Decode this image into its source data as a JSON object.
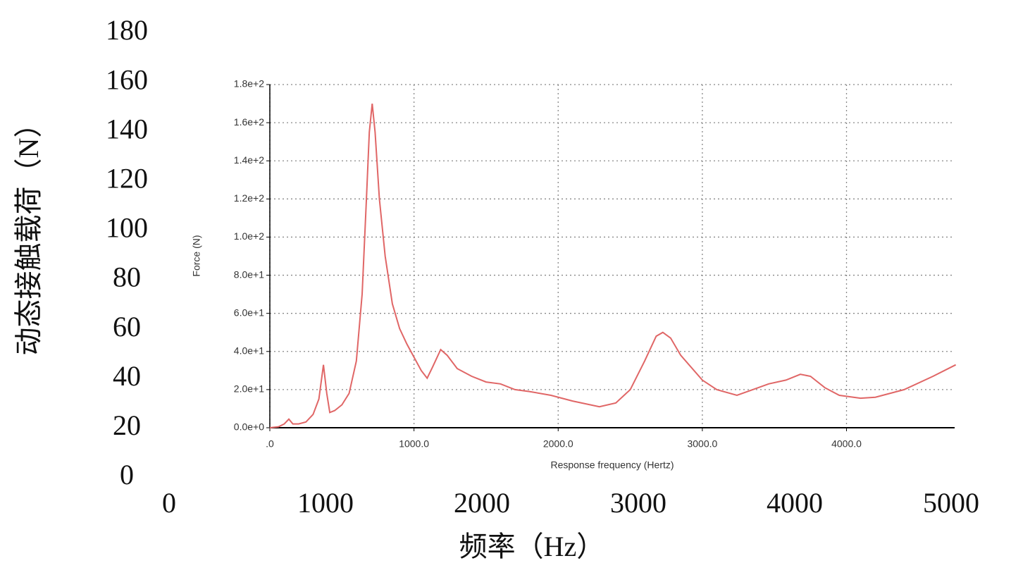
{
  "chart_data": [
    {
      "type": "line",
      "xlabel": "Response frequency (Hertz)",
      "ylabel": "Force (N)",
      "x": [
        0,
        60,
        100,
        132,
        160,
        200,
        250,
        300,
        340,
        372,
        395,
        416,
        450,
        500,
        550,
        600,
        640,
        670,
        690,
        710,
        730,
        760,
        800,
        850,
        900,
        950,
        1000,
        1050,
        1091,
        1130,
        1185,
        1230,
        1300,
        1400,
        1500,
        1600,
        1700,
        1800,
        1950,
        2100,
        2286,
        2400,
        2500,
        2600,
        2680,
        2726,
        2780,
        2850,
        3000,
        3100,
        3240,
        3350,
        3460,
        3580,
        3680,
        3750,
        3850,
        3950,
        4097,
        4200,
        4400,
        4600,
        4758
      ],
      "series": [
        {
          "name": "Force",
          "color": "#e06666",
          "values": [
            0,
            0.5,
            2,
            4.5,
            2,
            2,
            3,
            7,
            15,
            33,
            18,
            8,
            9,
            12,
            18,
            35,
            70,
            120,
            155,
            170,
            155,
            120,
            90,
            65,
            52,
            44,
            37,
            30,
            26,
            32,
            41,
            38,
            31,
            27,
            24,
            23,
            20,
            19,
            17,
            14,
            11,
            13,
            20,
            35,
            48,
            50,
            47,
            38,
            25,
            20,
            17,
            20,
            23,
            25,
            28,
            27,
            21,
            17,
            15.5,
            16,
            20,
            27,
            33
          ]
        }
      ],
      "xlim": [
        0,
        4750
      ],
      "ylim": [
        0,
        180
      ],
      "xticks": [
        {
          "value": 0,
          "label": ".0"
        },
        {
          "value": 1000,
          "label": "1000.0"
        },
        {
          "value": 2000,
          "label": "2000.0"
        },
        {
          "value": 3000,
          "label": "3000.0"
        },
        {
          "value": 4000,
          "label": "4000.0"
        }
      ],
      "yticks": [
        {
          "value": 0,
          "label": "0.0e+0"
        },
        {
          "value": 20,
          "label": "2.0e+1"
        },
        {
          "value": 40,
          "label": "4.0e+1"
        },
        {
          "value": 60,
          "label": "6.0e+1"
        },
        {
          "value": 80,
          "label": "8.0e+1"
        },
        {
          "value": 100,
          "label": "1.0e+2"
        },
        {
          "value": 120,
          "label": "1.2e+2"
        },
        {
          "value": 140,
          "label": "1.4e+2"
        },
        {
          "value": 160,
          "label": "1.6e+2"
        },
        {
          "value": 180,
          "label": "1.8e+2"
        }
      ],
      "grid": true
    },
    {
      "type": "axes",
      "xlabel": "频率（Hz）",
      "ylabel": "动态接触载荷（N）",
      "xlim": [
        0,
        5000
      ],
      "ylim": [
        0,
        180
      ],
      "xticks": [
        0,
        1000,
        2000,
        3000,
        4000,
        5000
      ],
      "yticks": [
        0,
        20,
        40,
        60,
        80,
        100,
        120,
        140,
        160,
        180
      ]
    }
  ]
}
